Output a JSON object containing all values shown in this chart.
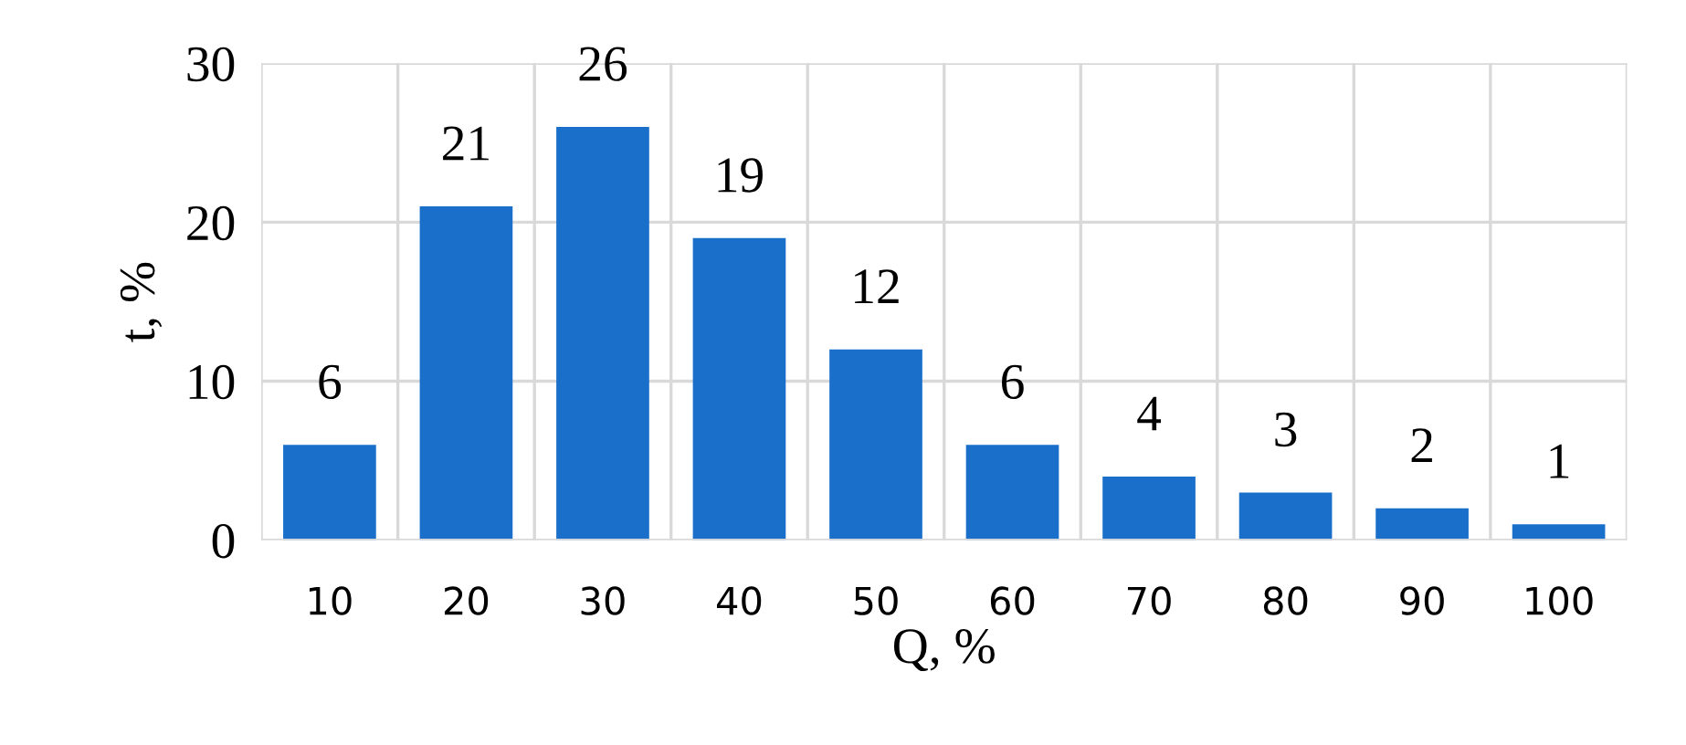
{
  "chart_data": {
    "type": "bar",
    "xlabel": "Q, %",
    "ylabel": "t, %",
    "categories": [
      "10",
      "20",
      "30",
      "40",
      "50",
      "60",
      "70",
      "80",
      "90",
      "100"
    ],
    "values": [
      6,
      21,
      26,
      19,
      12,
      6,
      4,
      3,
      2,
      1
    ],
    "color": "#1a6fca",
    "ylim": [
      0,
      30
    ],
    "yticks": [
      0,
      10,
      20,
      30
    ],
    "grid": true,
    "data_labels": true
  }
}
